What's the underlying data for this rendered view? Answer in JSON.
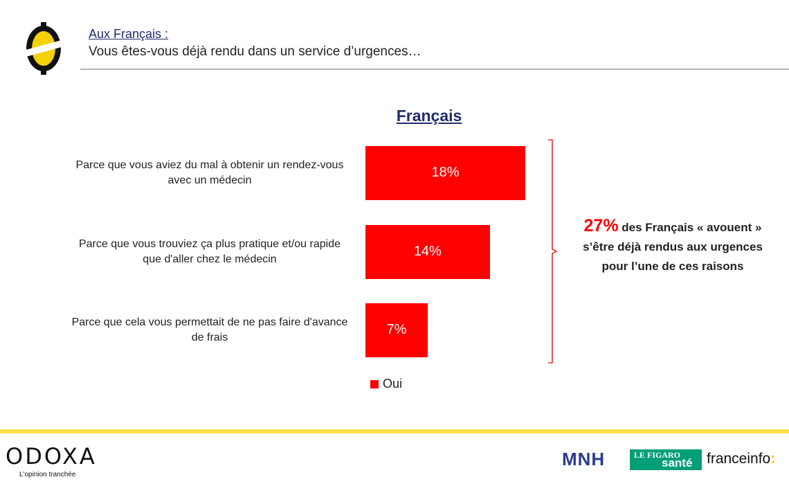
{
  "header": {
    "intro": "Aux Français :",
    "question": "Vous êtes-vous déjà rendu dans un service d’urgences…"
  },
  "chart_data": {
    "type": "bar",
    "orientation": "horizontal",
    "title": "Français",
    "categories": [
      "Parce que vous aviez du mal à obtenir un rendez-vous avec un médecin",
      "Parce que vous trouviez ça plus pratique et/ou rapide que d'aller chez le médecin",
      "Parce que cela vous permettait de ne pas faire d'avance de frais"
    ],
    "category_lines": [
      [
        "Parce que vous aviez du mal à obtenir un rendez-vous",
        "avec un médecin"
      ],
      [
        "Parce que vous trouviez ça plus pratique et/ou rapide",
        "que d'aller chez le médecin"
      ],
      [
        "Parce que cela vous permettait de ne pas faire d'avance",
        "de frais"
      ]
    ],
    "series": [
      {
        "name": "Oui",
        "values": [
          18,
          14,
          7
        ],
        "labels": [
          "18%",
          "14%",
          "7%"
        ],
        "color": "#ff0000"
      }
    ],
    "xlim": [
      0,
      18
    ],
    "legend": "bottom"
  },
  "callout": {
    "percentage": "27%",
    "text_line1": " des Français « avouent »",
    "text_line2": "s’être déjà rendus aux urgences",
    "text_line3": "pour l’une de ces raisons"
  },
  "footer": {
    "odoxa_name": "ODOXA",
    "odoxa_tagline": "L'opinion tranchée",
    "mnh": "MNH",
    "figaro_top": "LE FIGARO",
    "figaro_bottom": "santé",
    "franceinfo": "franceinfo",
    "franceinfo_colon": ":"
  },
  "colors": {
    "accent": "#ff0000",
    "title_blue": "#1f2d6b",
    "footer_yellow": "#f9e04b"
  }
}
